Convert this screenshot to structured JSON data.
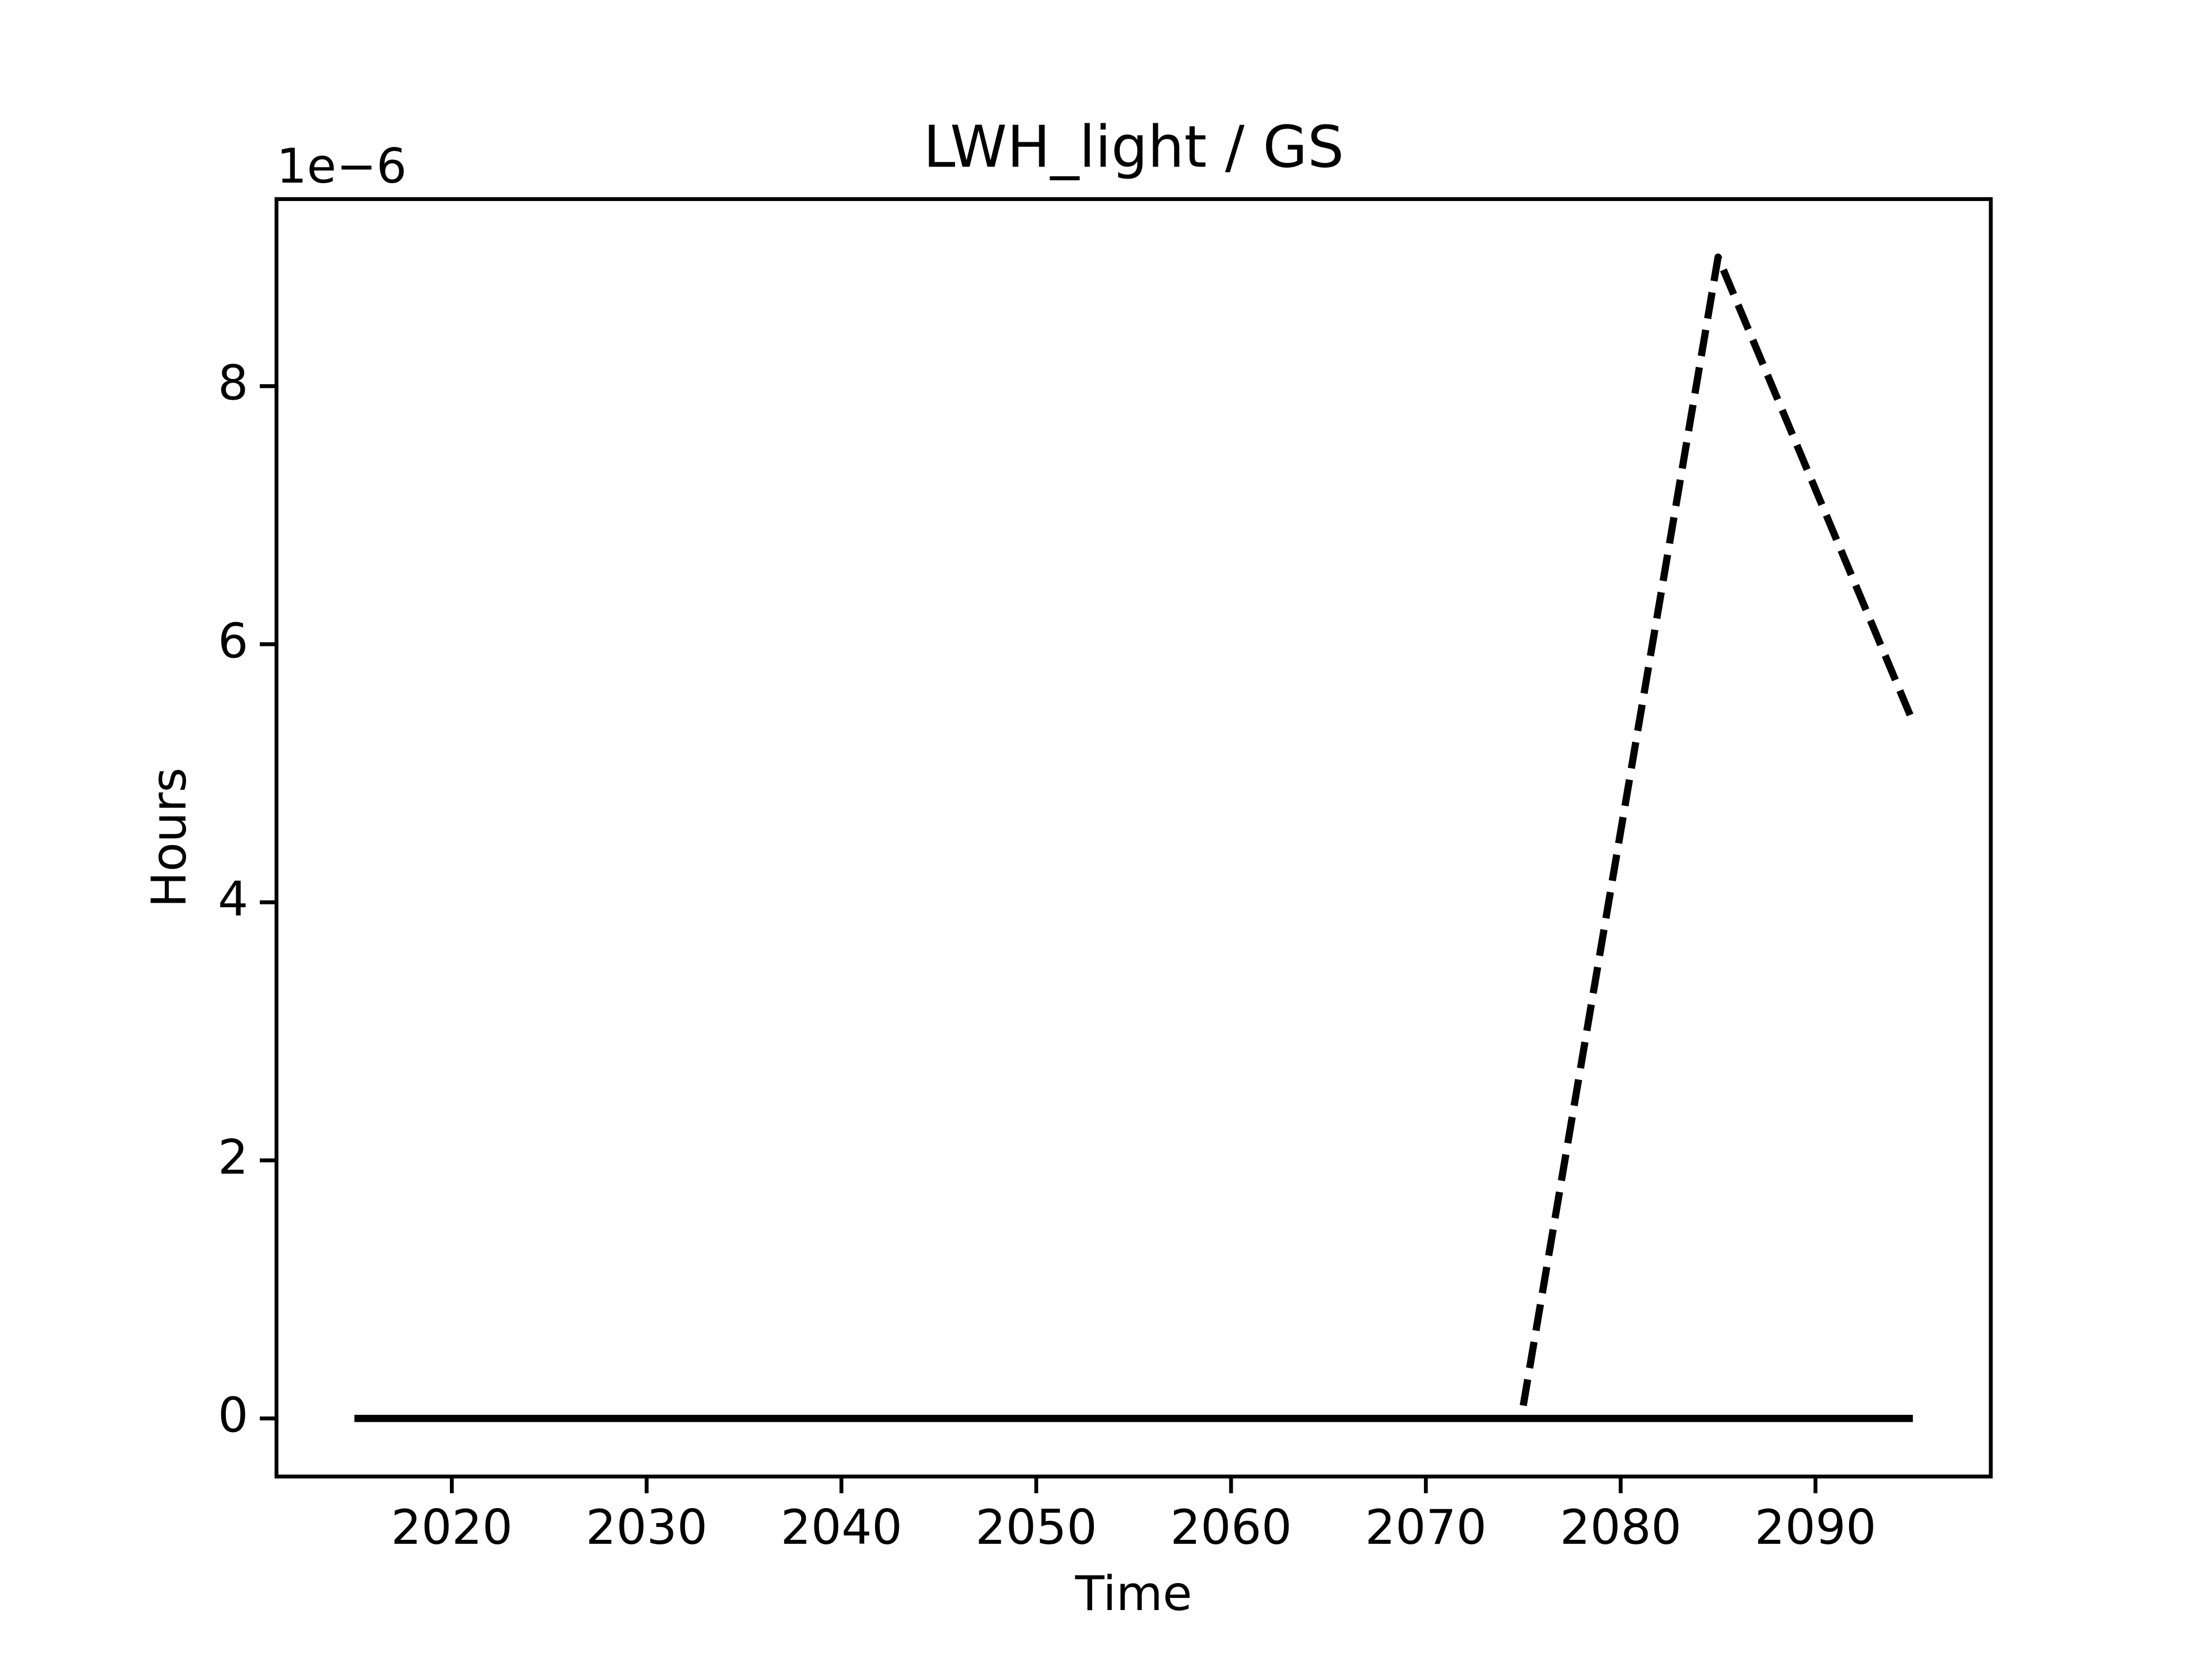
{
  "chart_data": {
    "type": "line",
    "title": "LWH_light / GS",
    "xlabel": "Time",
    "ylabel": "Hours",
    "y_offset_text": "1e−6",
    "x": [
      2015,
      2025,
      2035,
      2045,
      2055,
      2065,
      2075,
      2085,
      2095
    ],
    "series": [
      {
        "color": "#000000",
        "linestyle": "solid",
        "values": [
          0,
          0,
          0,
          0,
          0,
          0,
          0,
          0,
          0
        ]
      },
      {
        "color": "#000000",
        "linestyle": "dashed",
        "values": [
          null,
          null,
          null,
          null,
          null,
          null,
          1e-07,
          9e-06,
          5.4e-06
        ]
      }
    ],
    "xlim": [
      2011,
      2099
    ],
    "xticks": [
      2020,
      2030,
      2040,
      2050,
      2060,
      2070,
      2080,
      2090
    ],
    "ylim": [
      -4.5e-07,
      9.45e-06
    ],
    "yticks": [
      {
        "value": 0,
        "label": "0"
      },
      {
        "value": 2e-06,
        "label": "2"
      },
      {
        "value": 4e-06,
        "label": "4"
      },
      {
        "value": 6e-06,
        "label": "6"
      },
      {
        "value": 8e-06,
        "label": "8"
      }
    ],
    "grid": false
  }
}
